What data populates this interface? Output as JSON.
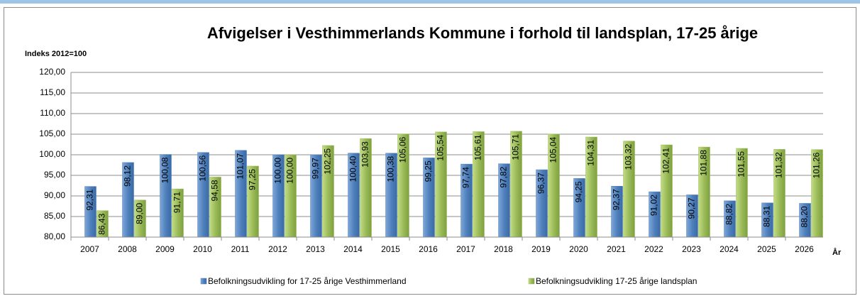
{
  "chart_data": {
    "type": "bar",
    "title": "Afvigelser i Vesthimmerlands Kommune i forhold til landsplan, 17-25 årige",
    "y_label": "Indeks 2012=100",
    "x_label": "År",
    "categories": [
      "2007",
      "2008",
      "2009",
      "2010",
      "2011",
      "2012",
      "2013",
      "2014",
      "2015",
      "2016",
      "2017",
      "2018",
      "2019",
      "2020",
      "2021",
      "2022",
      "2023",
      "2024",
      "2025",
      "2026"
    ],
    "series": [
      {
        "name": "Befolkningsudvikling for 17-25 årige Vesthimmerland",
        "color": "#4f81bd",
        "values": [
          92.31,
          98.12,
          100.08,
          100.56,
          101.07,
          100.0,
          99.97,
          100.4,
          100.38,
          99.25,
          97.74,
          97.82,
          96.37,
          94.25,
          92.37,
          91.02,
          90.27,
          88.82,
          88.31,
          88.2
        ],
        "value_labels": [
          "92,31",
          "98,12",
          "100,08",
          "100,56",
          "101,07",
          "100,00",
          "99,97",
          "100,40",
          "100,38",
          "99,25",
          "97,74",
          "97,82",
          "96,37",
          "94,25",
          "92,37",
          "91,02",
          "90,27",
          "88,82",
          "88,31",
          "88,20"
        ]
      },
      {
        "name": "Befolkningsudvikling 17-25 årige landsplan",
        "color": "#9bbb59",
        "values": [
          86.43,
          89.0,
          91.71,
          94.58,
          97.25,
          100.0,
          102.25,
          103.93,
          105.06,
          105.54,
          105.61,
          105.71,
          105.04,
          104.31,
          103.32,
          102.41,
          101.88,
          101.55,
          101.32,
          101.26
        ],
        "value_labels": [
          "86,43",
          "89,00",
          "91,71",
          "94,58",
          "97,25",
          "100,00",
          "102,25",
          "103,93",
          "105,06",
          "105,54",
          "105,61",
          "105,71",
          "105,04",
          "104,31",
          "103,32",
          "102,41",
          "101,88",
          "101,55",
          "101,32",
          "101,26"
        ]
      }
    ],
    "ylim": [
      80,
      120
    ],
    "yticks": [
      {
        "value": 80,
        "label": "80,00"
      },
      {
        "value": 85,
        "label": "85,00"
      },
      {
        "value": 90,
        "label": "90,00"
      },
      {
        "value": 95,
        "label": "95,00"
      },
      {
        "value": 100,
        "label": "100,00"
      },
      {
        "value": 105,
        "label": "105,00"
      },
      {
        "value": 110,
        "label": "110,00"
      },
      {
        "value": 115,
        "label": "115,00"
      },
      {
        "value": 120,
        "label": "120,00"
      }
    ],
    "grid": true,
    "legend": "bottom"
  }
}
